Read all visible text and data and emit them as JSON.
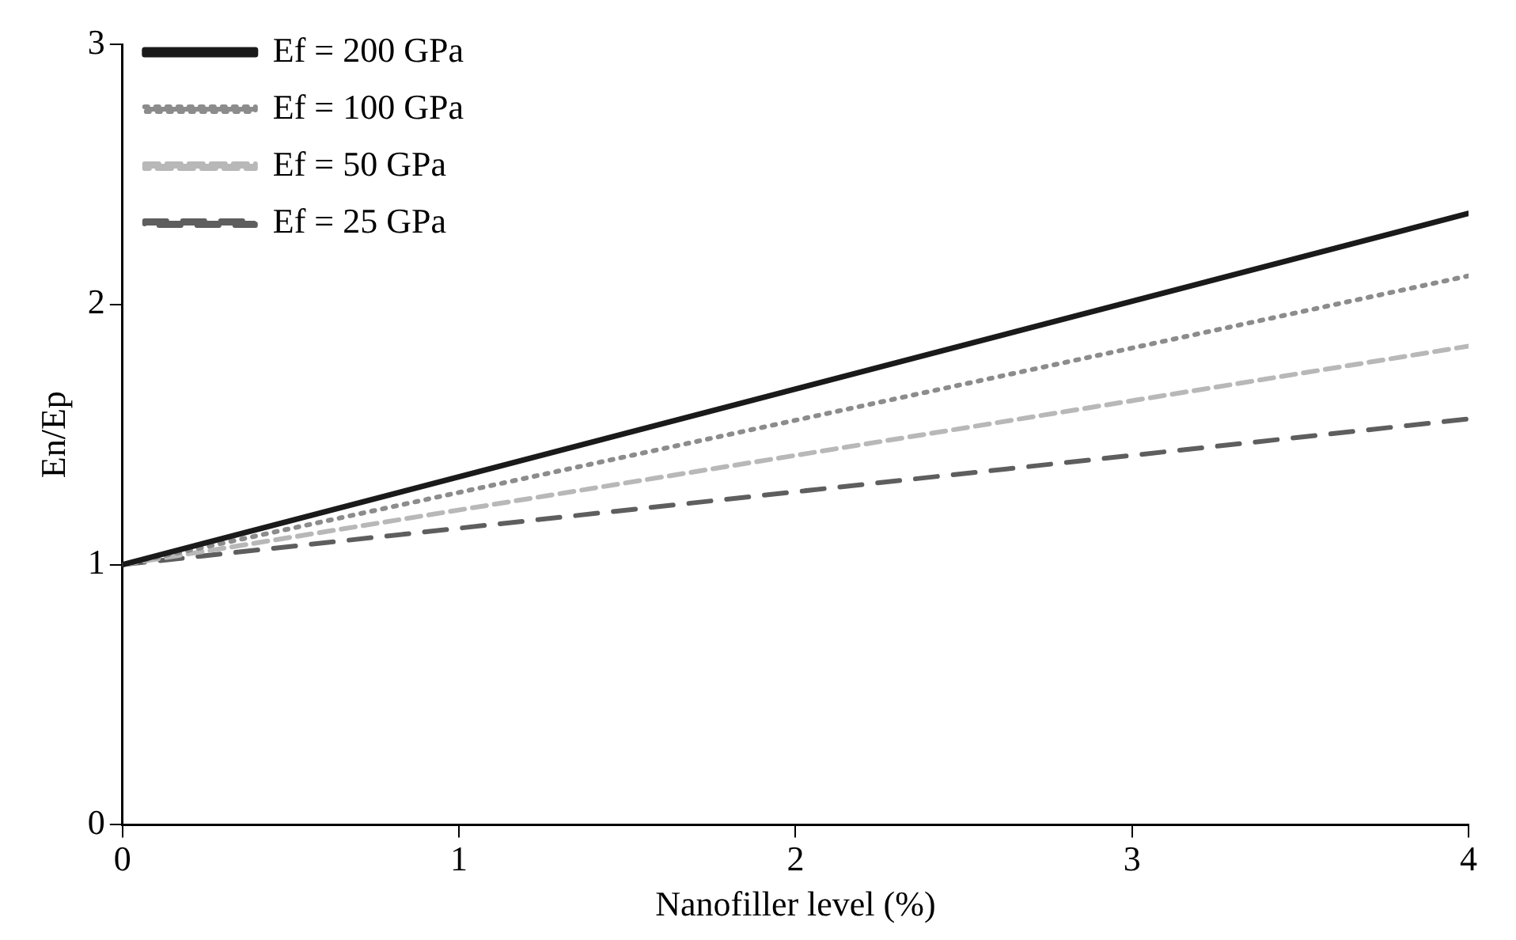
{
  "chart_data": {
    "type": "line",
    "xlabel": "Nanofiller level (%)",
    "ylabel": "En/Ep",
    "x": [
      0,
      2,
      4
    ],
    "xlim": [
      0,
      4
    ],
    "xticks": [
      0,
      1,
      2,
      3,
      4
    ],
    "ylim": [
      0,
      3
    ],
    "yticks": [
      0,
      1,
      2,
      3
    ],
    "grid": false,
    "legend": "top left",
    "marker": "none",
    "series": [
      {
        "name": "Ef = 200 GPa",
        "color": "#1a1a1a",
        "line_style": "solid",
        "values": [
          1,
          1.675,
          2.35
        ]
      },
      {
        "name": "Ef = 100 GPa",
        "color": "#8c8c8c",
        "line_style": "dotted",
        "values": [
          1,
          1.555,
          2.11
        ]
      },
      {
        "name": "Ef = 50 GPa",
        "color": "#b8b8b8",
        "line_style": "dashed",
        "values": [
          1,
          1.42,
          1.84
        ]
      },
      {
        "name": "Ef = 25 GPa",
        "color": "#5e5e5e",
        "line_style": "dashed",
        "values": [
          1,
          1.28,
          1.56
        ]
      }
    ]
  }
}
